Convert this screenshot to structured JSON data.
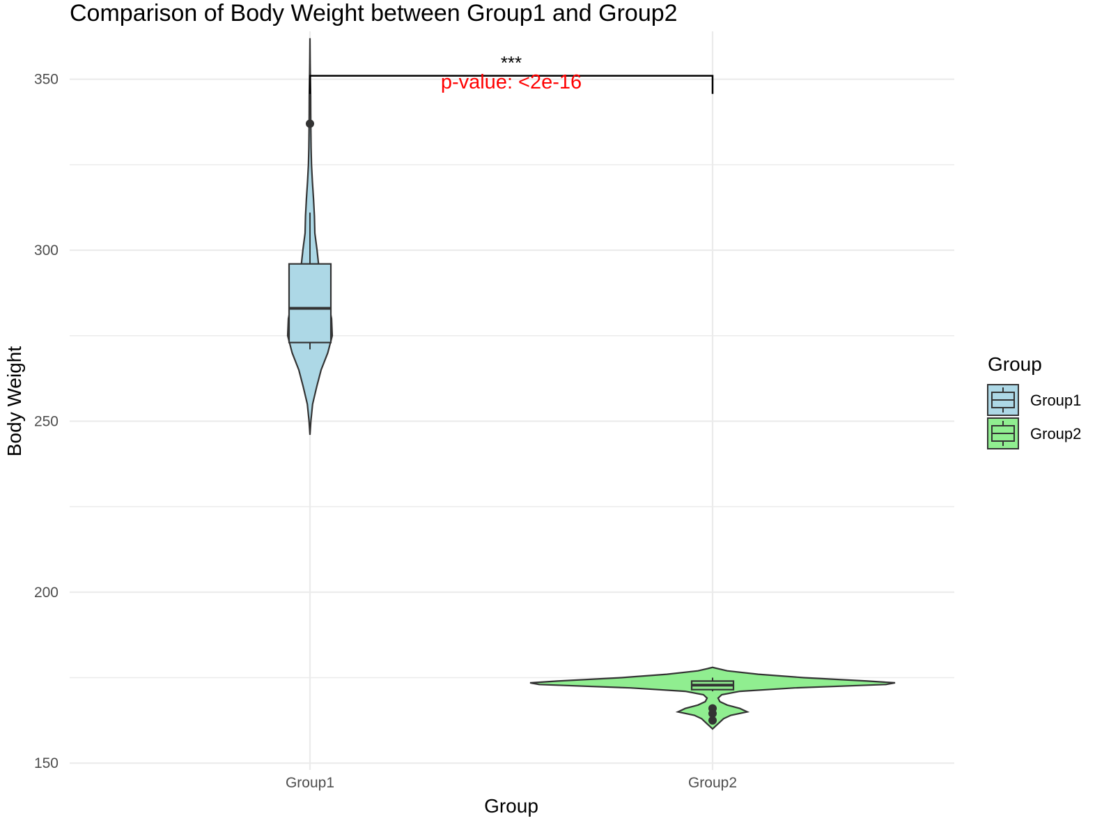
{
  "chart_data": {
    "type": "violin",
    "title": "Comparison of Body Weight between Group1 and Group2",
    "xlabel": "Group",
    "ylabel": "Body Weight",
    "categories": [
      "Group1",
      "Group2"
    ],
    "ylim": [
      148,
      364
    ],
    "y_ticks": [
      150,
      200,
      250,
      300,
      350
    ],
    "grid": true,
    "legend": {
      "title": "Group",
      "position": "right",
      "items": [
        {
          "label": "Group1",
          "color": "#add8e6"
        },
        {
          "label": "Group2",
          "color": "#90ee90"
        }
      ]
    },
    "series": [
      {
        "name": "Group1",
        "color": "#add8e6",
        "violin": {
          "min": 246,
          "max": 362,
          "profile": [
            [
              246,
              0
            ],
            [
              250,
              0.04
            ],
            [
              255,
              0.12
            ],
            [
              260,
              0.3
            ],
            [
              265,
              0.5
            ],
            [
              270,
              0.8
            ],
            [
              275,
              1.0
            ],
            [
              280,
              0.97
            ],
            [
              285,
              0.82
            ],
            [
              290,
              0.62
            ],
            [
              295,
              0.4
            ],
            [
              300,
              0.32
            ],
            [
              305,
              0.22
            ],
            [
              310,
              0.2
            ],
            [
              315,
              0.16
            ],
            [
              320,
              0.11
            ],
            [
              325,
              0.07
            ],
            [
              330,
              0.05
            ],
            [
              335,
              0.04
            ],
            [
              340,
              0.035
            ],
            [
              345,
              0.03
            ],
            [
              350,
              0.02
            ],
            [
              355,
              0.01
            ],
            [
              362,
              0
            ]
          ]
        },
        "box": {
          "q1": 273,
          "median": 283,
          "q3": 296,
          "whisker_low": 271,
          "whisker_high": 311
        },
        "outliers": [
          337
        ]
      },
      {
        "name": "Group2",
        "color": "#90ee90",
        "violin": {
          "min": 160,
          "max": 178,
          "profile": [
            [
              160,
              0
            ],
            [
              161,
              0.02
            ],
            [
              162,
              0.04
            ],
            [
              163,
              0.06
            ],
            [
              164,
              0.1
            ],
            [
              165,
              0.19
            ],
            [
              166,
              0.15
            ],
            [
              167,
              0.08
            ],
            [
              168,
              0.04
            ],
            [
              169,
              0.03
            ],
            [
              170,
              0.05
            ],
            [
              171,
              0.15
            ],
            [
              172,
              0.45
            ],
            [
              173,
              0.95
            ],
            [
              173.5,
              1.0
            ],
            [
              174,
              0.85
            ],
            [
              175,
              0.5
            ],
            [
              176,
              0.25
            ],
            [
              177,
              0.08
            ],
            [
              178,
              0
            ]
          ]
        },
        "box": {
          "q1": 171.5,
          "median": 172.8,
          "q3": 174,
          "whisker_low": 171,
          "whisker_high": 175
        },
        "outliers": [
          166,
          164.5,
          162.5
        ]
      }
    ],
    "annotation": {
      "between": [
        "Group1",
        "Group2"
      ],
      "bracket_y": 351,
      "stars": "***",
      "p_value_text": "p-value:  <2e-16",
      "p_value_color": "#ff0000"
    }
  }
}
